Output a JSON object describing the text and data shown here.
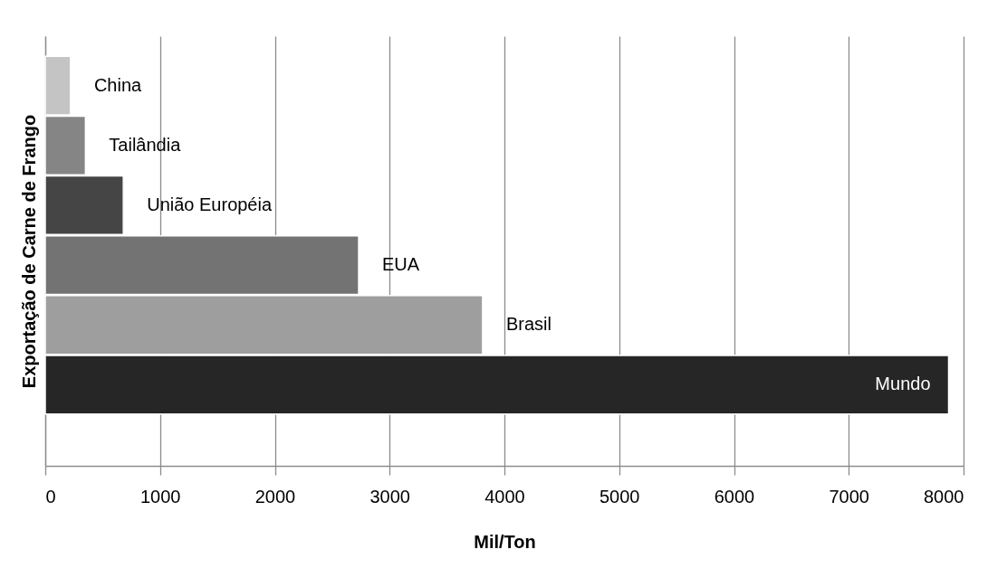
{
  "chart_data": {
    "type": "bar",
    "orientation": "horizontal",
    "xlabel": "Mil/Ton",
    "ylabel": "Exportação de Carne de Frango",
    "categories": [
      "China",
      "Tailândia",
      "União Européia",
      "EUA",
      "Brasil",
      "Mundo"
    ],
    "values": [
      220,
      350,
      680,
      2730,
      3810,
      7870
    ],
    "colors": [
      "#c4c4c4",
      "#858585",
      "#454545",
      "#737373",
      "#9e9e9e",
      "#262626"
    ],
    "xlim": [
      0,
      8000
    ],
    "xticks": [
      0,
      1000,
      2000,
      3000,
      4000,
      5000,
      6000,
      7000,
      8000
    ],
    "grid": "x",
    "tick_labels": "x"
  }
}
